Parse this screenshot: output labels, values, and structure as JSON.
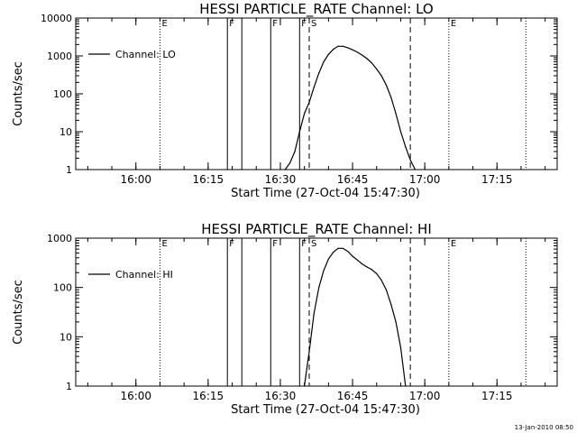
{
  "footer": {
    "timestamp": "13-Jan-2010 08:50"
  },
  "chart_data": [
    {
      "type": "line",
      "title": "HESSI PARTICLE_RATE Channel: LO",
      "xlabel": "Start Time (27-Oct-04 15:47:30)",
      "ylabel": "Counts/sec",
      "yscale": "log",
      "xlim": [
        "15:47:30",
        "17:27:30"
      ],
      "ylim": [
        1,
        10000
      ],
      "xticks": [
        "16:00",
        "16:15",
        "16:30",
        "16:45",
        "17:00",
        "17:15"
      ],
      "yticks": [
        "1",
        "10",
        "100",
        "1000",
        "10000"
      ],
      "legend": {
        "label": "Channel: LO",
        "placement": "top-left"
      },
      "markers": [
        {
          "time": "16:05",
          "style": "dotted",
          "label": "E"
        },
        {
          "time": "16:19",
          "style": "solid",
          "label": "F"
        },
        {
          "time": "16:22",
          "style": "solid",
          "label": ""
        },
        {
          "time": "16:28",
          "style": "solid",
          "label": "F"
        },
        {
          "time": "16:34",
          "style": "solid",
          "label": "F"
        },
        {
          "time": "16:36",
          "style": "dashed",
          "label": "S"
        },
        {
          "time": "16:57",
          "style": "dashed",
          "label": ""
        },
        {
          "time": "17:05",
          "style": "dotted",
          "label": "E"
        },
        {
          "time": "17:21",
          "style": "dotted",
          "label": ""
        }
      ],
      "series": [
        {
          "name": "Channel: LO",
          "x": [
            "16:31",
            "16:32",
            "16:33",
            "16:34",
            "16:35",
            "16:36",
            "16:37",
            "16:38",
            "16:39",
            "16:40",
            "16:41",
            "16:42",
            "16:43",
            "16:44",
            "16:45",
            "16:46",
            "16:47",
            "16:48",
            "16:49",
            "16:50",
            "16:51",
            "16:52",
            "16:53",
            "16:54",
            "16:55",
            "16:56",
            "16:57",
            "16:58"
          ],
          "y": [
            1,
            1.5,
            3,
            10,
            30,
            60,
            150,
            350,
            700,
            1100,
            1500,
            1800,
            1800,
            1650,
            1450,
            1250,
            1050,
            850,
            650,
            450,
            300,
            170,
            80,
            30,
            10,
            4,
            1.8,
            1
          ]
        }
      ]
    },
    {
      "type": "line",
      "title": "HESSI PARTICLE_RATE Channel: HI",
      "xlabel": "Start Time (27-Oct-04 15:47:30)",
      "ylabel": "Counts/sec",
      "yscale": "log",
      "xlim": [
        "15:47:30",
        "17:27:30"
      ],
      "ylim": [
        1,
        1000
      ],
      "xticks": [
        "16:00",
        "16:15",
        "16:30",
        "16:45",
        "17:00",
        "17:15"
      ],
      "yticks": [
        "1",
        "10",
        "100",
        "1000"
      ],
      "legend": {
        "label": "Channel: HI",
        "placement": "top-left"
      },
      "markers": [
        {
          "time": "16:05",
          "style": "dotted",
          "label": "E"
        },
        {
          "time": "16:19",
          "style": "solid",
          "label": "F"
        },
        {
          "time": "16:22",
          "style": "solid",
          "label": ""
        },
        {
          "time": "16:28",
          "style": "solid",
          "label": "F"
        },
        {
          "time": "16:34",
          "style": "solid",
          "label": "F"
        },
        {
          "time": "16:36",
          "style": "dashed",
          "label": "S"
        },
        {
          "time": "16:57",
          "style": "dashed",
          "label": ""
        },
        {
          "time": "17:05",
          "style": "dotted",
          "label": "E"
        },
        {
          "time": "17:21",
          "style": "dotted",
          "label": ""
        }
      ],
      "series": [
        {
          "name": "Channel: HI",
          "x": [
            "16:35",
            "16:36",
            "16:37",
            "16:38",
            "16:39",
            "16:40",
            "16:41",
            "16:42",
            "16:43",
            "16:44",
            "16:45",
            "16:46",
            "16:47",
            "16:48",
            "16:49",
            "16:50",
            "16:51",
            "16:52",
            "16:53",
            "16:54",
            "16:55",
            "16:56"
          ],
          "y": [
            1,
            5,
            30,
            100,
            220,
            380,
            520,
            620,
            620,
            540,
            430,
            360,
            300,
            260,
            230,
            190,
            140,
            90,
            45,
            20,
            6,
            1
          ]
        }
      ]
    }
  ]
}
